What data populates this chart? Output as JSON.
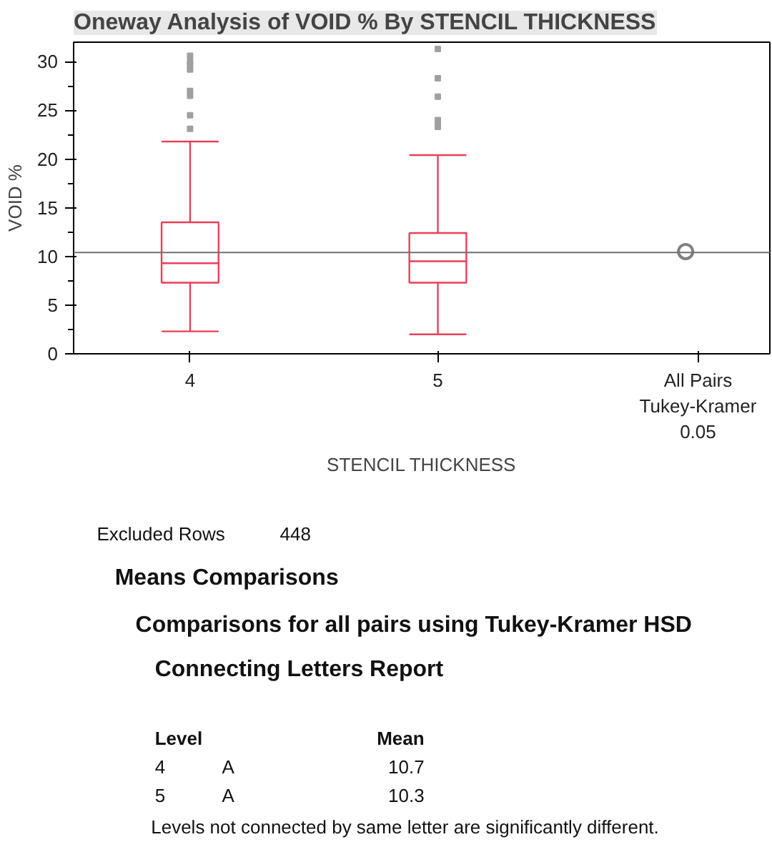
{
  "chart_data": {
    "type": "box",
    "title": "Oneway Analysis of VOID % By STENCIL THICKNESS",
    "xlabel": "STENCIL THICKNESS",
    "ylabel": "VOID %",
    "categories": [
      "4",
      "5",
      null
    ],
    "series": [
      {
        "color": "#e8405a",
        "boxes": [
          {
            "low": 2.3,
            "q1": 7.3,
            "median": 9.3,
            "q3": 13.5,
            "high": 21.8,
            "outliers": [
              23.1,
              24.5,
              26.5,
              27.0,
              29.2,
              29.6,
              30.0,
              30.6
            ]
          },
          {
            "low": 2.0,
            "q1": 7.3,
            "median": 9.5,
            "q3": 12.4,
            "high": 20.4,
            "outliers": [
              23.3,
              23.6,
              24.0,
              26.4,
              28.3,
              31.3
            ]
          },
          null
        ]
      },
      {
        "type": "scatter",
        "color": "#808080",
        "marker": "circle",
        "values": [
          null,
          null,
          10.5
        ]
      }
    ],
    "ylim": [
      0,
      32
    ],
    "yticks": [
      0,
      5,
      10,
      15,
      20,
      25,
      30
    ],
    "grid": false,
    "ref_lines": [
      {
        "axis": "y",
        "value": 10.4,
        "color": "#707070"
      }
    ],
    "annotations": [
      "All Pairs",
      "Tukey-Kramer",
      "0.05",
      "Excluded Rows",
      "448",
      "Means Comparisons",
      "Comparisons for all pairs using Tukey-Kramer HSD",
      "Connecting Letters Report",
      "Level",
      "Mean",
      "4",
      "A",
      "10.7",
      "5",
      "A",
      "10.3",
      "Levels not connected by same letter are significantly different."
    ]
  }
}
